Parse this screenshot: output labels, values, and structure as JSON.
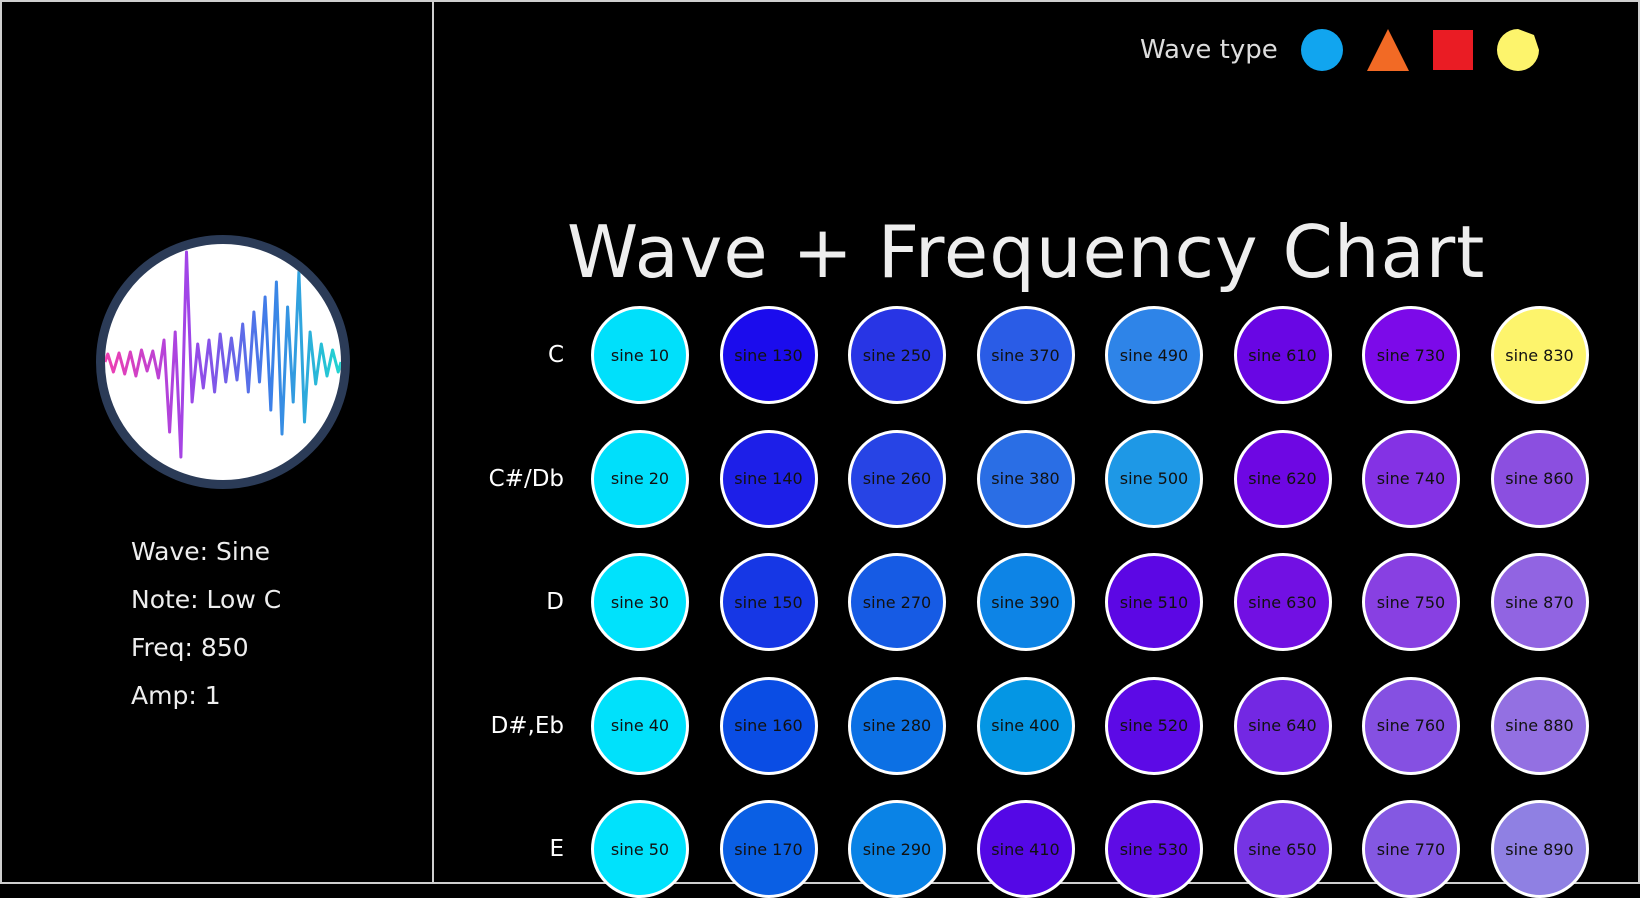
{
  "info": {
    "wave": "Wave: Sine",
    "note": "Note: Low C",
    "freq": "Freq: 850",
    "amp": "Amp: 1"
  },
  "legend": {
    "label": "Wave type",
    "shapes": [
      {
        "name": "sine-wave-circle-icon",
        "color": "#11a5ef"
      },
      {
        "name": "triangle-wave-icon",
        "color": "#f26a25"
      },
      {
        "name": "square-wave-icon",
        "color": "#ea1c24"
      },
      {
        "name": "sawtooth-wave-icon",
        "color": "#fdf46c"
      }
    ]
  },
  "title": "Wave + Frequency Chart",
  "notes": [
    "C",
    "C#/Db",
    "D",
    "D#,Eb",
    "E"
  ],
  "grid": [
    [
      {
        "label": "sine 10",
        "color": "#00e0fb"
      },
      {
        "label": "sine 130",
        "color": "#1b0ced"
      },
      {
        "label": "sine 250",
        "color": "#2835e5"
      },
      {
        "label": "sine 370",
        "color": "#2a5ce6"
      },
      {
        "label": "sine 490",
        "color": "#2e84e8"
      },
      {
        "label": "sine 610",
        "color": "#6906e4"
      },
      {
        "label": "sine 730",
        "color": "#7c0ae9"
      },
      {
        "label": "sine 830",
        "color": "#fdf46c"
      }
    ],
    [
      {
        "label": "sine 20",
        "color": "#00dffb"
      },
      {
        "label": "sine 140",
        "color": "#1d1fe8"
      },
      {
        "label": "sine 260",
        "color": "#2744e5"
      },
      {
        "label": "sine 380",
        "color": "#2a6ee5"
      },
      {
        "label": "sine 500",
        "color": "#1e98e6"
      },
      {
        "label": "sine 620",
        "color": "#6e07e3"
      },
      {
        "label": "sine 740",
        "color": "#8432e4"
      },
      {
        "label": "sine 860",
        "color": "#8b4fe0"
      }
    ],
    [
      {
        "label": "sine 30",
        "color": "#00e2fc"
      },
      {
        "label": "sine 150",
        "color": "#1637e5"
      },
      {
        "label": "sine 270",
        "color": "#165be4"
      },
      {
        "label": "sine 390",
        "color": "#0d84e6"
      },
      {
        "label": "sine 510",
        "color": "#5c07e4"
      },
      {
        "label": "sine 630",
        "color": "#7210e3"
      },
      {
        "label": "sine 750",
        "color": "#8840e2"
      },
      {
        "label": "sine 870",
        "color": "#9164e2"
      }
    ],
    [
      {
        "label": "sine 40",
        "color": "#00e1fb"
      },
      {
        "label": "sine 160",
        "color": "#0a4de4"
      },
      {
        "label": "sine 280",
        "color": "#0c70e4"
      },
      {
        "label": "sine 400",
        "color": "#0496e4"
      },
      {
        "label": "sine 520",
        "color": "#5c0ae6"
      },
      {
        "label": "sine 640",
        "color": "#7328e3"
      },
      {
        "label": "sine 760",
        "color": "#8550e2"
      },
      {
        "label": "sine 880",
        "color": "#9370e2"
      }
    ],
    [
      {
        "label": "sine 50",
        "color": "#00e2fc"
      },
      {
        "label": "sine 170",
        "color": "#0a5fe4"
      },
      {
        "label": "sine 290",
        "color": "#0a83e6"
      },
      {
        "label": "sine 410",
        "color": "#5408e6"
      },
      {
        "label": "sine 530",
        "color": "#5e0ce5"
      },
      {
        "label": "sine 650",
        "color": "#7634e4"
      },
      {
        "label": "sine 770",
        "color": "#8458e2"
      },
      {
        "label": "sine 890",
        "color": "#8f80e3"
      }
    ]
  ]
}
